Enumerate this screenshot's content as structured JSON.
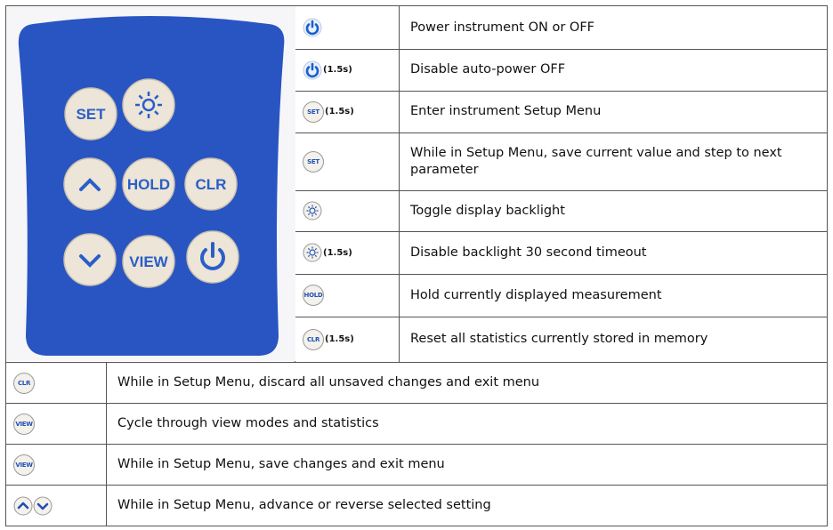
{
  "keypad": {
    "keys": {
      "set": "SET",
      "hold": "HOLD",
      "clr": "CLR",
      "view": "VIEW"
    }
  },
  "top_rows": [
    {
      "icon": "power",
      "text": "Power instrument ON or OFF"
    },
    {
      "icon": "power",
      "duration": "(1.5s)",
      "text": "Disable auto-power OFF"
    },
    {
      "icon": "key",
      "icon_label": "SET",
      "duration": "(1.5s)",
      "text": "Enter instrument Setup Menu"
    },
    {
      "icon": "key",
      "icon_label": "SET",
      "text": "While in Setup Menu, save current value and step to next parameter"
    },
    {
      "icon": "sun",
      "text": "Toggle display backlight"
    },
    {
      "icon": "sun",
      "duration": "(1.5s)",
      "text": "Disable backlight 30 second timeout"
    },
    {
      "icon": "key",
      "icon_label": "HOLD",
      "text": "Hold currently displayed measurement"
    },
    {
      "icon": "key",
      "icon_label": "CLR",
      "duration": "(1.5s)",
      "text": "Reset all statistics currently stored in memory"
    }
  ],
  "bottom_rows": [
    {
      "icon": "key",
      "icon_label": "CLR",
      "text": "While in Setup Menu, discard all unsaved changes and exit menu"
    },
    {
      "icon": "key",
      "icon_label": "VIEW",
      "text": "Cycle through view modes and statistics"
    },
    {
      "icon": "key",
      "icon_label": "VIEW",
      "text": "While in Setup Menu, save changes and exit menu"
    },
    {
      "icon": "arrows",
      "text": "While in Setup Menu, advance or reverse selected setting"
    }
  ]
}
